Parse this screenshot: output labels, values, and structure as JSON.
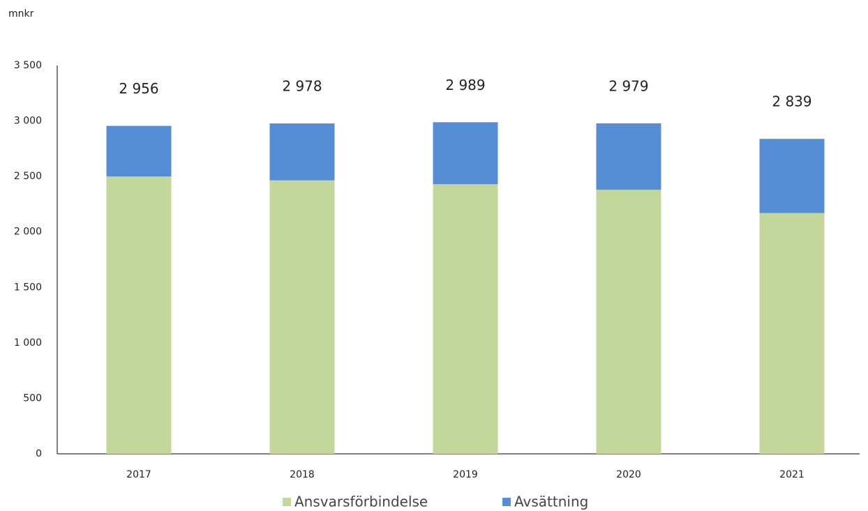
{
  "chart_data": {
    "type": "stacked_bar",
    "y_unit": "mnkr",
    "categories": [
      "2017",
      "2018",
      "2019",
      "2020",
      "2021"
    ],
    "series": [
      {
        "name": "Ansvarsförbindelse",
        "color": "#c4d79b",
        "values": [
          2500,
          2465,
          2430,
          2380,
          2170
        ]
      },
      {
        "name": "Avsättning",
        "color": "#558ed5",
        "values": [
          456,
          513,
          559,
          599,
          669
        ]
      }
    ],
    "total_values": [
      2956,
      2978,
      2989,
      2979,
      2839
    ],
    "total_labels": [
      "2 956",
      "2 978",
      "2 989",
      "2 979",
      "2 839"
    ],
    "ylim": [
      0,
      3500
    ],
    "yticks": [
      0,
      500,
      {
        "value": 1000,
        "label": "1 000"
      },
      {
        "value": 1500,
        "label": "1 500"
      },
      {
        "value": 2000,
        "label": "2 000"
      },
      {
        "value": 2500,
        "label": "2 500"
      },
      {
        "value": 3000,
        "label": "3 000"
      },
      {
        "value": 3500,
        "label": "3 500"
      }
    ],
    "legend": "bottom"
  }
}
